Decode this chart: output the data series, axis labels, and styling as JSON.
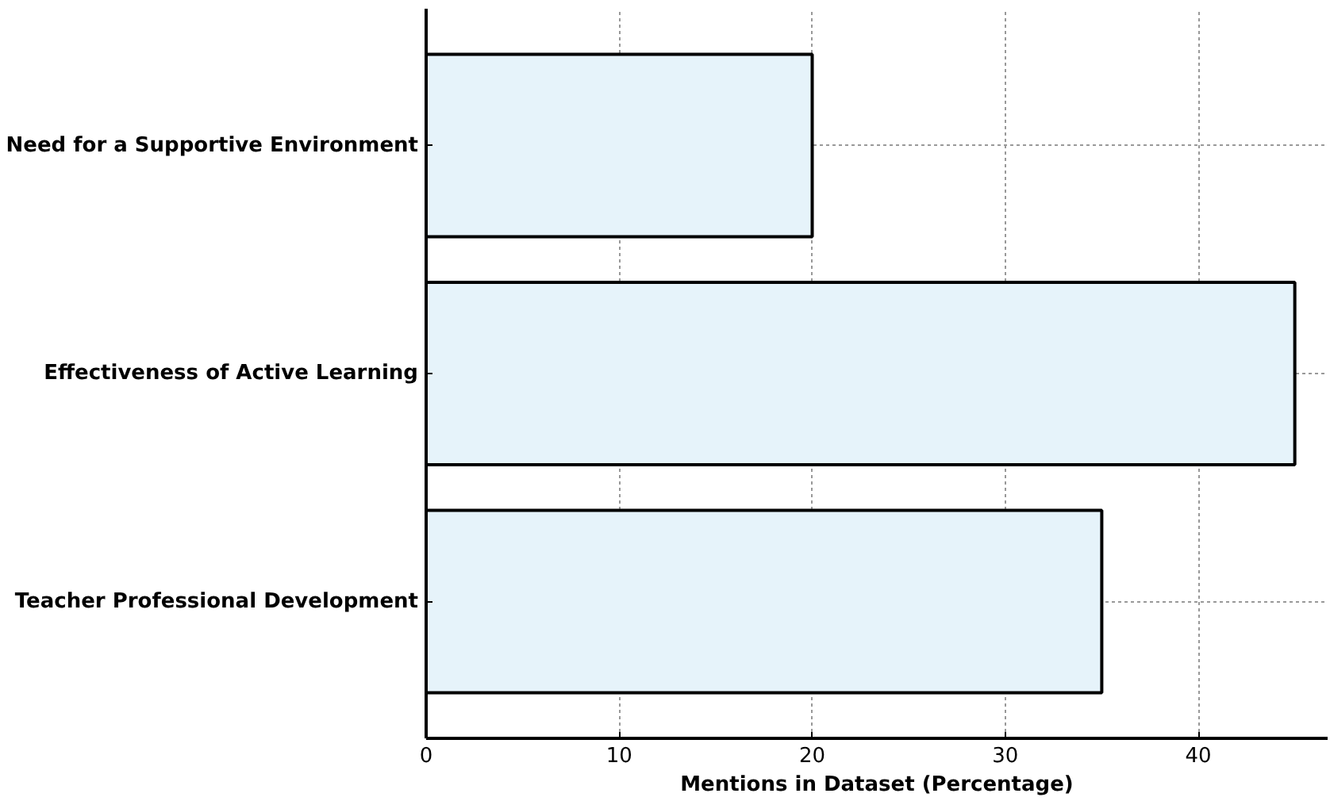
{
  "chart_data": {
    "type": "bar",
    "orientation": "horizontal",
    "xlabel": "Mentions in Dataset (Percentage)",
    "categories": [
      "Need for a Supportive Environment",
      "Effectiveness of Active Learning",
      "Teacher Professional Development"
    ],
    "values": [
      20,
      45,
      35
    ],
    "color": "#e6f3fa",
    "xlim": [
      0,
      46.7
    ],
    "xticks": [
      0,
      10,
      20,
      30,
      40
    ],
    "grid": true
  }
}
